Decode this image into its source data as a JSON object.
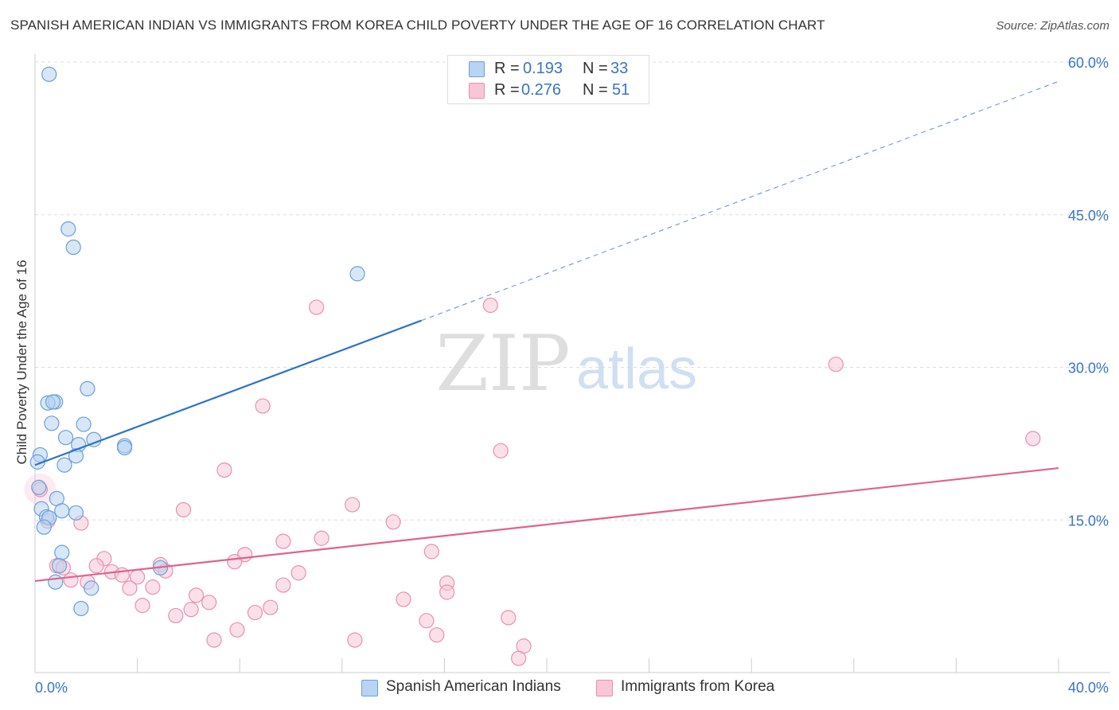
{
  "title": "SPANISH AMERICAN INDIAN VS IMMIGRANTS FROM KOREA CHILD POVERTY UNDER THE AGE OF 16 CORRELATION CHART",
  "source": "Source: ZipAtlas.com",
  "watermark": {
    "zip": "ZIP",
    "atlas": "atlas"
  },
  "legend": {
    "r_label": "R =",
    "n_label": "N =",
    "rows": [
      {
        "r": "0.193",
        "n": "33"
      },
      {
        "r": "0.276",
        "n": "51"
      }
    ]
  },
  "bottom_legend": [
    "Spanish American Indians",
    "Immigrants from Korea"
  ],
  "colors": {
    "blue_fill": "#b8d3f3",
    "blue_stroke": "#6b9fd8",
    "blue_line": "#2f72cc",
    "pink_fill": "#f8c6d6",
    "pink_stroke": "#e891ad",
    "pink_line": "#e0628e",
    "axis_label": "#3a74c4",
    "grid": "#dddddd"
  },
  "chart_data": {
    "type": "scatter",
    "title": "SPANISH AMERICAN INDIAN VS IMMIGRANTS FROM KOREA CHILD POVERTY UNDER THE AGE OF 16 CORRELATION CHART",
    "xlabel": "",
    "ylabel": "Child Poverty Under the Age of 16",
    "xlim": [
      0,
      40
    ],
    "ylim": [
      0,
      60
    ],
    "x_tick_labels": [
      "0.0%",
      "40.0%"
    ],
    "y_ticks": [
      15,
      30,
      45,
      60
    ],
    "y_tick_labels": [
      "15.0%",
      "30.0%",
      "45.0%",
      "60.0%"
    ],
    "grid": true,
    "series": [
      {
        "name": "Spanish American Indians",
        "R": 0.193,
        "N": 33,
        "trend": {
          "x": [
            0,
            15.1
          ],
          "y": [
            20.4,
            34.6
          ],
          "dashed_to": [
            40,
            58.1
          ]
        },
        "points": [
          [
            0.55,
            58.8
          ],
          [
            1.3,
            43.6
          ],
          [
            1.5,
            41.8
          ],
          [
            12.6,
            39.2
          ],
          [
            2.05,
            27.9
          ],
          [
            0.8,
            26.6
          ],
          [
            0.5,
            26.5
          ],
          [
            0.7,
            26.6
          ],
          [
            0.65,
            24.5
          ],
          [
            1.9,
            24.4
          ],
          [
            1.2,
            23.1
          ],
          [
            2.3,
            22.9
          ],
          [
            1.7,
            22.4
          ],
          [
            3.5,
            22.3
          ],
          [
            3.5,
            22.1
          ],
          [
            0.2,
            21.4
          ],
          [
            1.6,
            21.3
          ],
          [
            0.1,
            20.7
          ],
          [
            1.15,
            20.4
          ],
          [
            0.15,
            18.2
          ],
          [
            0.85,
            17.1
          ],
          [
            0.25,
            16.1
          ],
          [
            1.05,
            15.9
          ],
          [
            1.6,
            15.7
          ],
          [
            0.45,
            15.3
          ],
          [
            0.55,
            15.2
          ],
          [
            0.35,
            14.3
          ],
          [
            1.05,
            11.8
          ],
          [
            0.95,
            10.5
          ],
          [
            4.9,
            10.3
          ],
          [
            0.8,
            8.9
          ],
          [
            2.2,
            8.3
          ],
          [
            1.8,
            6.3
          ]
        ]
      },
      {
        "name": "Immigrants from Korea",
        "R": 0.276,
        "N": 51,
        "trend": {
          "x": [
            0,
            40
          ],
          "y": [
            9.0,
            20.1
          ]
        },
        "points": [
          [
            11.0,
            35.9
          ],
          [
            17.8,
            36.1
          ],
          [
            31.3,
            30.3
          ],
          [
            8.9,
            26.2
          ],
          [
            39.0,
            23.0
          ],
          [
            18.2,
            21.8
          ],
          [
            7.4,
            19.9
          ],
          [
            0.2,
            18.0
          ],
          [
            12.4,
            16.5
          ],
          [
            5.8,
            16.0
          ],
          [
            14.0,
            14.8
          ],
          [
            0.5,
            14.9
          ],
          [
            1.8,
            14.7
          ],
          [
            11.2,
            13.2
          ],
          [
            9.7,
            12.9
          ],
          [
            15.5,
            11.9
          ],
          [
            8.2,
            11.6
          ],
          [
            2.7,
            11.2
          ],
          [
            7.8,
            10.9
          ],
          [
            2.4,
            10.5
          ],
          [
            4.9,
            10.6
          ],
          [
            0.85,
            10.5
          ],
          [
            1.1,
            10.3
          ],
          [
            5.1,
            10.0
          ],
          [
            10.3,
            9.8
          ],
          [
            3.0,
            9.9
          ],
          [
            3.4,
            9.6
          ],
          [
            4.0,
            9.4
          ],
          [
            1.4,
            9.1
          ],
          [
            2.05,
            8.9
          ],
          [
            16.1,
            8.8
          ],
          [
            9.7,
            8.6
          ],
          [
            4.6,
            8.4
          ],
          [
            3.7,
            8.3
          ],
          [
            16.1,
            7.9
          ],
          [
            6.3,
            7.6
          ],
          [
            14.4,
            7.2
          ],
          [
            6.8,
            6.9
          ],
          [
            4.2,
            6.6
          ],
          [
            9.2,
            6.4
          ],
          [
            6.1,
            6.2
          ],
          [
            8.6,
            5.9
          ],
          [
            5.5,
            5.6
          ],
          [
            18.5,
            5.4
          ],
          [
            15.3,
            5.1
          ],
          [
            7.9,
            4.2
          ],
          [
            15.7,
            3.7
          ],
          [
            7.0,
            3.2
          ],
          [
            12.5,
            3.2
          ],
          [
            19.1,
            2.6
          ],
          [
            18.9,
            1.4
          ]
        ]
      }
    ]
  }
}
